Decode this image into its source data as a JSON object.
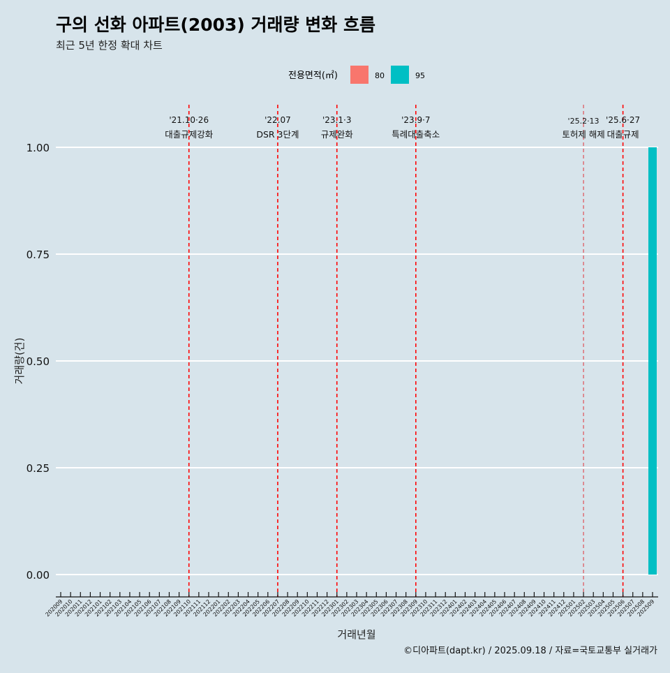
{
  "chart_data": {
    "type": "bar",
    "title": "구의 선화 아파트(2003) 거래량 변화 흐름",
    "subtitle": "최근 5년 한정 확대 차트",
    "xlabel": "거래년월",
    "ylabel": "거래량(건)",
    "ylim": [
      0,
      1
    ],
    "yticks": [
      "0.00",
      "0.25",
      "0.50",
      "0.75",
      "1.00"
    ],
    "legend": {
      "title": "전용면적(㎡)",
      "position": "top",
      "entries": [
        {
          "name": "80",
          "color": "#f8766d"
        },
        {
          "name": "95",
          "color": "#00bfc4"
        }
      ]
    },
    "categories": [
      "202009",
      "202010",
      "202011",
      "202012",
      "202101",
      "202102",
      "202103",
      "202104",
      "202105",
      "202106",
      "202107",
      "202108",
      "202109",
      "202110",
      "202111",
      "202112",
      "202201",
      "202202",
      "202203",
      "202204",
      "202205",
      "202206",
      "202207",
      "202208",
      "202209",
      "202210",
      "202211",
      "202212",
      "202301",
      "202302",
      "202303",
      "202304",
      "202305",
      "202306",
      "202307",
      "202308",
      "202309",
      "202310",
      "202311",
      "202312",
      "202401",
      "202402",
      "202403",
      "202404",
      "202405",
      "202406",
      "202407",
      "202408",
      "202409",
      "202410",
      "202411",
      "202412",
      "202501",
      "202502",
      "202503",
      "202504",
      "202505",
      "202506",
      "202507",
      "202508",
      "202509"
    ],
    "series": [
      {
        "name": "80",
        "color": "#f8766d",
        "points": []
      },
      {
        "name": "95",
        "color": "#00bfc4",
        "points": [
          {
            "x": "202509",
            "y": 1
          }
        ]
      }
    ],
    "annotations": [
      {
        "x": "202110",
        "date": "'21.10·26",
        "label": "대출규제강화",
        "major": true
      },
      {
        "x": "202207",
        "date": "'22.07",
        "label": "DSR 3단계",
        "major": true
      },
      {
        "x": "202301",
        "date": "'23.1·3",
        "label": "규제완화",
        "major": true
      },
      {
        "x": "202309",
        "date": "'23.9·7",
        "label": "특례대출축소",
        "major": true
      },
      {
        "x": "202502",
        "date": "'25.2·13",
        "label": "토허제 해제",
        "major": false
      },
      {
        "x": "202506",
        "date": "'25.6·27",
        "label": "대출규제",
        "major": true
      }
    ],
    "grid": true
  },
  "caption": "©디아파트(dapt.kr) / 2025.09.18 / 자료=국토교통부 실거래가"
}
